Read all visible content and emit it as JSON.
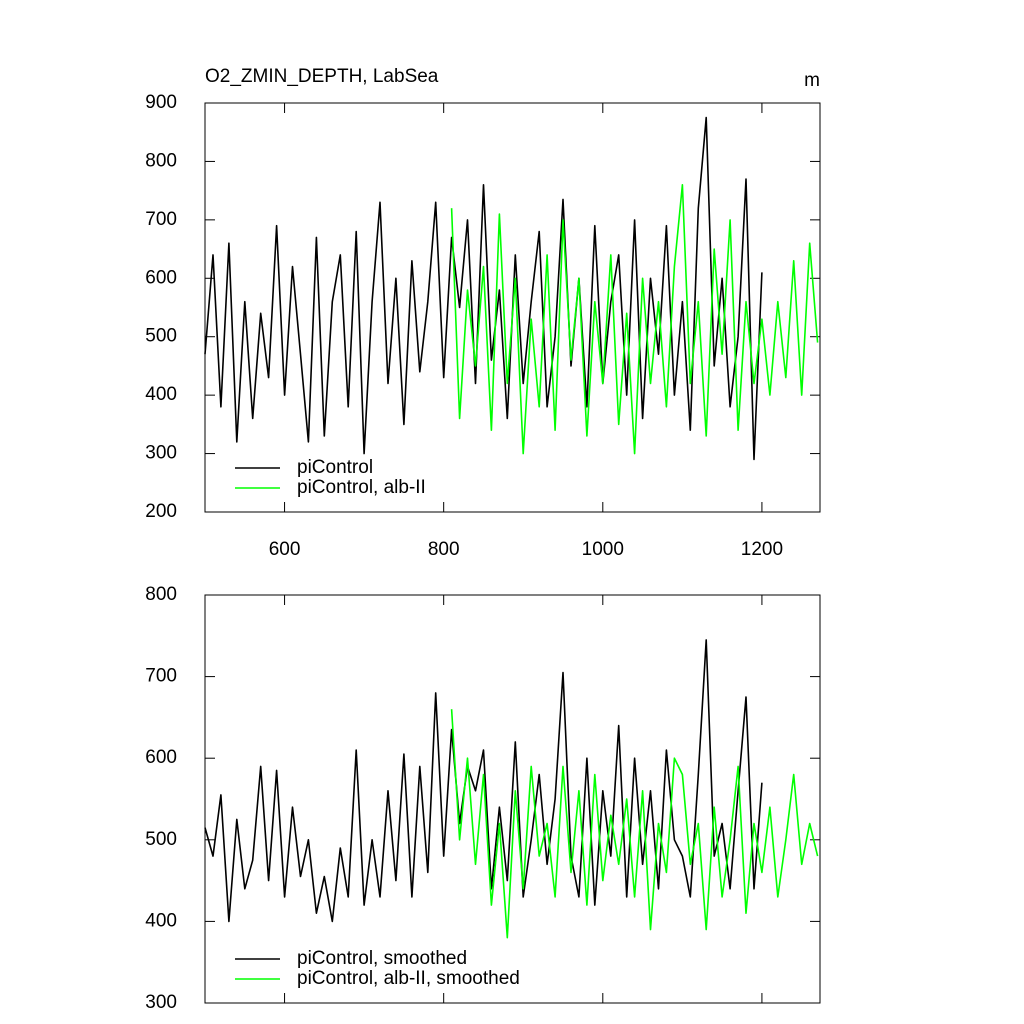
{
  "chart_data": [
    {
      "type": "line",
      "title": "O2_ZMIN_DEPTH, LabSea",
      "units": "m",
      "x": [
        500,
        510,
        520,
        530,
        540,
        550,
        560,
        570,
        580,
        590,
        600,
        610,
        620,
        630,
        640,
        650,
        660,
        670,
        680,
        690,
        700,
        710,
        720,
        730,
        740,
        750,
        760,
        770,
        780,
        790,
        800,
        810,
        820,
        830,
        840,
        850,
        860,
        870,
        880,
        890,
        900,
        910,
        920,
        930,
        940,
        950,
        960,
        970,
        980,
        990,
        1000,
        1010,
        1020,
        1030,
        1040,
        1050,
        1060,
        1070,
        1080,
        1090,
        1100,
        1110,
        1120,
        1130,
        1140,
        1150,
        1160,
        1170,
        1180,
        1190,
        1200,
        1210,
        1220,
        1230,
        1240,
        1250,
        1260,
        1270
      ],
      "series": [
        {
          "name": "piControl",
          "color": "#000000",
          "values": [
            470,
            640,
            380,
            660,
            320,
            560,
            360,
            540,
            430,
            690,
            400,
            620,
            470,
            320,
            670,
            330,
            560,
            640,
            380,
            680,
            300,
            560,
            730,
            420,
            600,
            350,
            630,
            440,
            560,
            730,
            430,
            670,
            550,
            700,
            420,
            760,
            460,
            580,
            360,
            640,
            420,
            560,
            680,
            380,
            500,
            735,
            450,
            600,
            380,
            690,
            420,
            560,
            640,
            400,
            700,
            360,
            600,
            470,
            690,
            400,
            560,
            340,
            720,
            875,
            450,
            600,
            380,
            500,
            770,
            290,
            610,
            null,
            null,
            null,
            null,
            null,
            null,
            null
          ]
        },
        {
          "name": "piControl, alb-II",
          "color": "#00ff00",
          "values": [
            null,
            null,
            null,
            null,
            null,
            null,
            null,
            null,
            null,
            null,
            null,
            null,
            null,
            null,
            null,
            null,
            null,
            null,
            null,
            null,
            null,
            null,
            null,
            null,
            null,
            null,
            null,
            null,
            null,
            null,
            null,
            720,
            360,
            580,
            450,
            620,
            340,
            710,
            420,
            600,
            300,
            530,
            380,
            640,
            340,
            700,
            460,
            600,
            330,
            560,
            420,
            640,
            350,
            540,
            300,
            600,
            420,
            560,
            380,
            620,
            760,
            420,
            560,
            330,
            650,
            470,
            700,
            340,
            560,
            420,
            530,
            400,
            560,
            430,
            630,
            400,
            660,
            490
          ]
        }
      ],
      "xlim": [
        500,
        1273
      ],
      "xticks": [
        600,
        800,
        1000,
        1200
      ],
      "ylim": [
        200,
        900
      ],
      "yticks": [
        200,
        300,
        400,
        500,
        600,
        700,
        800,
        900
      ],
      "legend": "lower left"
    },
    {
      "type": "line",
      "x": [
        500,
        510,
        520,
        530,
        540,
        550,
        560,
        570,
        580,
        590,
        600,
        610,
        620,
        630,
        640,
        650,
        660,
        670,
        680,
        690,
        700,
        710,
        720,
        730,
        740,
        750,
        760,
        770,
        780,
        790,
        800,
        810,
        820,
        830,
        840,
        850,
        860,
        870,
        880,
        890,
        900,
        910,
        920,
        930,
        940,
        950,
        960,
        970,
        980,
        990,
        1000,
        1010,
        1020,
        1030,
        1040,
        1050,
        1060,
        1070,
        1080,
        1090,
        1100,
        1110,
        1120,
        1130,
        1140,
        1150,
        1160,
        1170,
        1180,
        1190,
        1200,
        1210,
        1220,
        1230,
        1240,
        1250,
        1260,
        1270
      ],
      "series": [
        {
          "name": "piControl, smoothed",
          "color": "#000000",
          "values": [
            515,
            480,
            555,
            400,
            525,
            440,
            475,
            590,
            450,
            585,
            430,
            540,
            455,
            500,
            410,
            455,
            400,
            490,
            430,
            610,
            420,
            500,
            430,
            560,
            450,
            605,
            430,
            590,
            460,
            680,
            480,
            635,
            520,
            590,
            560,
            610,
            440,
            540,
            450,
            620,
            430,
            500,
            580,
            470,
            550,
            705,
            480,
            430,
            600,
            420,
            560,
            480,
            640,
            430,
            600,
            470,
            560,
            440,
            610,
            500,
            480,
            430,
            580,
            745,
            480,
            520,
            440,
            560,
            675,
            440,
            570,
            null,
            null,
            null,
            null,
            null,
            null,
            null
          ]
        },
        {
          "name": "piControl, alb-II, smoothed",
          "color": "#00ff00",
          "values": [
            null,
            null,
            null,
            null,
            null,
            null,
            null,
            null,
            null,
            null,
            null,
            null,
            null,
            null,
            null,
            null,
            null,
            null,
            null,
            null,
            null,
            null,
            null,
            null,
            null,
            null,
            null,
            null,
            null,
            null,
            null,
            660,
            500,
            600,
            470,
            580,
            420,
            520,
            380,
            560,
            440,
            590,
            480,
            520,
            430,
            590,
            460,
            560,
            420,
            580,
            450,
            530,
            470,
            550,
            430,
            560,
            390,
            520,
            460,
            600,
            580,
            470,
            520,
            390,
            540,
            430,
            500,
            590,
            410,
            520,
            460,
            540,
            430,
            500,
            580,
            470,
            520,
            480
          ]
        }
      ],
      "xlim": [
        500,
        1273
      ],
      "xticks": [
        600,
        800,
        1000,
        1200
      ],
      "ylim": [
        300,
        800
      ],
      "yticks": [
        300,
        400,
        500,
        600,
        700,
        800
      ],
      "legend": "lower left"
    }
  ]
}
